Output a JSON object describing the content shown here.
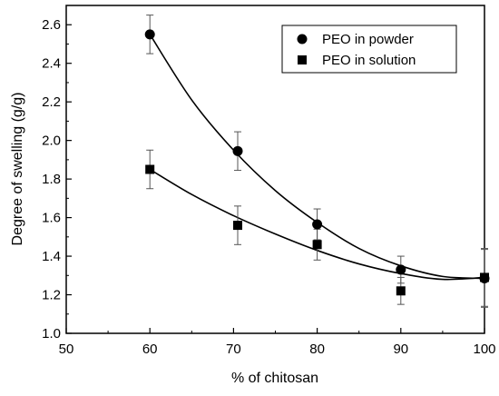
{
  "chart_data": {
    "type": "scatter",
    "title": "",
    "xlabel": "% of chitosan",
    "ylabel": "Degree of swelling (g/g)",
    "xlim": [
      50,
      100
    ],
    "ylim": [
      1.0,
      2.7
    ],
    "xticks": [
      50,
      60,
      70,
      80,
      90,
      100
    ],
    "yticks": [
      1.0,
      1.2,
      1.4,
      1.6,
      1.8,
      2.0,
      2.2,
      2.4,
      2.6
    ],
    "grid": false,
    "legend_position": "top-right",
    "series": [
      {
        "name": "PEO in powder",
        "marker": "circle",
        "points": [
          {
            "x": 60,
            "y": 2.55,
            "err": 0.1
          },
          {
            "x": 70.5,
            "y": 1.945,
            "err": 0.1
          },
          {
            "x": 80,
            "y": 1.565,
            "err": 0.08
          },
          {
            "x": 90,
            "y": 1.33,
            "err": 0.07
          },
          {
            "x": 100,
            "y": 1.285,
            "err": 0.15
          }
        ],
        "fit": [
          [
            60,
            2.55
          ],
          [
            65,
            2.21
          ],
          [
            70,
            1.95
          ],
          [
            75,
            1.74
          ],
          [
            80,
            1.575
          ],
          [
            85,
            1.44
          ],
          [
            90,
            1.35
          ],
          [
            95,
            1.295
          ],
          [
            100,
            1.285
          ]
        ]
      },
      {
        "name": "PEO in solution",
        "marker": "square",
        "points": [
          {
            "x": 60,
            "y": 1.85,
            "err": 0.1
          },
          {
            "x": 70.5,
            "y": 1.56,
            "err": 0.1
          },
          {
            "x": 80,
            "y": 1.46,
            "err": 0.08
          },
          {
            "x": 90,
            "y": 1.22,
            "err": 0.07
          },
          {
            "x": 100,
            "y": 1.29,
            "err": 0.15
          }
        ],
        "fit": [
          [
            60,
            1.85
          ],
          [
            65,
            1.72
          ],
          [
            70,
            1.61
          ],
          [
            75,
            1.515
          ],
          [
            80,
            1.43
          ],
          [
            85,
            1.36
          ],
          [
            90,
            1.31
          ],
          [
            95,
            1.28
          ],
          [
            100,
            1.29
          ]
        ]
      }
    ]
  }
}
